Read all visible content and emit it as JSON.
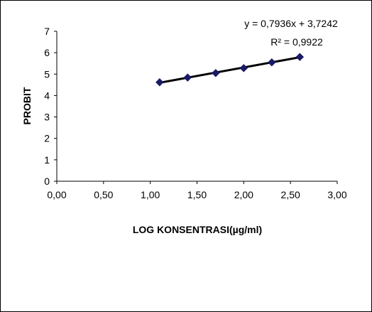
{
  "chart_data": {
    "type": "scatter",
    "title": "",
    "xlabel": "LOG KONSENTRASI(µg/ml)",
    "ylabel": "PROBIT",
    "xlim": [
      0,
      3
    ],
    "ylim": [
      0,
      7
    ],
    "x_tick_labels": [
      "0,00",
      "0,50",
      "1,00",
      "1,50",
      "2,00",
      "2,50",
      "3,00"
    ],
    "y_tick_labels": [
      "0",
      "1",
      "2",
      "3",
      "4",
      "5",
      "6",
      "7"
    ],
    "grid": false,
    "legend": "none",
    "series": [
      {
        "x": [
          1.1,
          1.4,
          1.7,
          2.0,
          2.3,
          2.6
        ],
        "y": [
          4.62,
          4.84,
          5.05,
          5.28,
          5.55,
          5.8
        ],
        "marker": "diamond",
        "color": "#1a1a66"
      }
    ],
    "trendline": {
      "slope": 0.7936,
      "intercept": 3.7242,
      "color": "#000000",
      "equation_label": "y = 0,7936x + 3,7242",
      "r2_label": "R² = 0,9922"
    }
  }
}
